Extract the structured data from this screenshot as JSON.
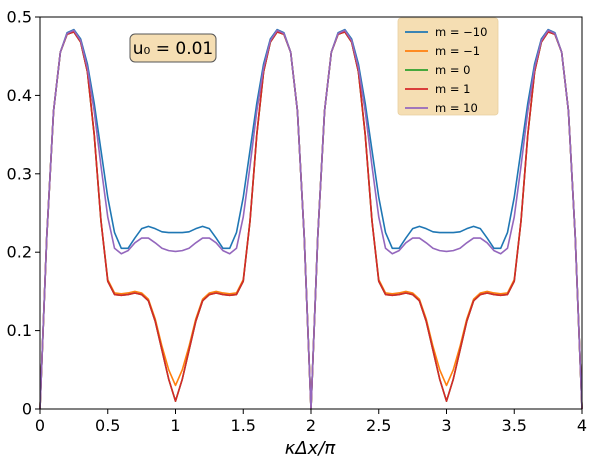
{
  "chart_data": {
    "type": "line",
    "title": "",
    "xlabel": "κΔx/π",
    "ylabel": "",
    "xlim": [
      0,
      4
    ],
    "ylim": [
      0,
      0.5
    ],
    "x_ticks": [
      0,
      0.5,
      1,
      1.5,
      2,
      2.5,
      3,
      3.5,
      4
    ],
    "x_tick_labels": [
      "0",
      "0.5",
      "1",
      "1.5",
      "2",
      "2.5",
      "3",
      "3.5",
      "4"
    ],
    "y_ticks": [
      0,
      0.1,
      0.2,
      0.3,
      0.4,
      0.5
    ],
    "y_tick_labels": [
      "0",
      "0.1",
      "0.2",
      "0.3",
      "0.4",
      "0.5"
    ],
    "grid": false,
    "legend_position": "top-right",
    "annotation": "u₀ = 0.01",
    "x": [
      0,
      0.05,
      0.1,
      0.15,
      0.2,
      0.25,
      0.3,
      0.35,
      0.4,
      0.45,
      0.5,
      0.55,
      0.6,
      0.65,
      0.7,
      0.75,
      0.8,
      0.85,
      0.9,
      0.95,
      1.0,
      1.05,
      1.1,
      1.15,
      1.2,
      1.25,
      1.3,
      1.35,
      1.4,
      1.45,
      1.5,
      1.55,
      1.6,
      1.65,
      1.7,
      1.75,
      1.8,
      1.85,
      1.9,
      1.95,
      2.0,
      2.05,
      2.1,
      2.15,
      2.2,
      2.25,
      2.3,
      2.35,
      2.4,
      2.45,
      2.5,
      2.55,
      2.6,
      2.65,
      2.7,
      2.75,
      2.8,
      2.85,
      2.9,
      2.95,
      3.0,
      3.05,
      3.1,
      3.15,
      3.2,
      3.25,
      3.3,
      3.35,
      3.4,
      3.45,
      3.5,
      3.55,
      3.6,
      3.65,
      3.7,
      3.75,
      3.8,
      3.85,
      3.9,
      3.95,
      4.0
    ],
    "series": [
      {
        "name": "m = −10",
        "color": "#1f77b4",
        "values": [
          0,
          0.22,
          0.38,
          0.455,
          0.48,
          0.484,
          0.472,
          0.44,
          0.39,
          0.33,
          0.27,
          0.225,
          0.205,
          0.205,
          0.218,
          0.23,
          0.233,
          0.23,
          0.226,
          0.225,
          0.225,
          0.225,
          0.226,
          0.23,
          0.233,
          0.23,
          0.218,
          0.205,
          0.205,
          0.225,
          0.27,
          0.33,
          0.39,
          0.44,
          0.472,
          0.484,
          0.48,
          0.455,
          0.38,
          0.22,
          0,
          0.22,
          0.38,
          0.455,
          0.48,
          0.484,
          0.472,
          0.44,
          0.39,
          0.33,
          0.27,
          0.225,
          0.205,
          0.205,
          0.218,
          0.23,
          0.233,
          0.23,
          0.226,
          0.225,
          0.225,
          0.225,
          0.226,
          0.23,
          0.233,
          0.23,
          0.218,
          0.205,
          0.205,
          0.225,
          0.27,
          0.33,
          0.39,
          0.44,
          0.472,
          0.484,
          0.48,
          0.455,
          0.38,
          0.22,
          0
        ]
      },
      {
        "name": "m = −1",
        "color": "#ff7f0e",
        "values": [
          0,
          0.22,
          0.38,
          0.455,
          0.478,
          0.481,
          0.468,
          0.43,
          0.35,
          0.24,
          0.165,
          0.148,
          0.147,
          0.148,
          0.15,
          0.148,
          0.14,
          0.115,
          0.08,
          0.05,
          0.03,
          0.05,
          0.08,
          0.115,
          0.14,
          0.148,
          0.15,
          0.148,
          0.147,
          0.148,
          0.165,
          0.24,
          0.35,
          0.43,
          0.468,
          0.481,
          0.478,
          0.455,
          0.38,
          0.22,
          0,
          0.22,
          0.38,
          0.455,
          0.478,
          0.481,
          0.468,
          0.43,
          0.35,
          0.24,
          0.165,
          0.148,
          0.147,
          0.148,
          0.15,
          0.148,
          0.14,
          0.115,
          0.08,
          0.05,
          0.03,
          0.05,
          0.08,
          0.115,
          0.14,
          0.148,
          0.15,
          0.148,
          0.147,
          0.148,
          0.165,
          0.24,
          0.35,
          0.43,
          0.468,
          0.481,
          0.478,
          0.455,
          0.38,
          0.22,
          0
        ]
      },
      {
        "name": "m = 0",
        "color": "#2ca02c",
        "values": [
          0,
          0.22,
          0.38,
          0.455,
          0.478,
          0.481,
          0.468,
          0.43,
          0.35,
          0.24,
          0.163,
          0.146,
          0.145,
          0.146,
          0.148,
          0.146,
          0.138,
          0.112,
          0.075,
          0.038,
          0.01,
          0.038,
          0.075,
          0.112,
          0.138,
          0.146,
          0.148,
          0.146,
          0.145,
          0.146,
          0.163,
          0.24,
          0.35,
          0.43,
          0.468,
          0.481,
          0.478,
          0.455,
          0.38,
          0.22,
          0,
          0.22,
          0.38,
          0.455,
          0.478,
          0.481,
          0.468,
          0.43,
          0.35,
          0.24,
          0.163,
          0.146,
          0.145,
          0.146,
          0.148,
          0.146,
          0.138,
          0.112,
          0.075,
          0.038,
          0.01,
          0.038,
          0.075,
          0.112,
          0.138,
          0.146,
          0.148,
          0.146,
          0.145,
          0.146,
          0.163,
          0.24,
          0.35,
          0.43,
          0.468,
          0.481,
          0.478,
          0.455,
          0.38,
          0.22,
          0
        ]
      },
      {
        "name": "m = 1",
        "color": "#d62728",
        "values": [
          0,
          0.22,
          0.38,
          0.455,
          0.478,
          0.481,
          0.468,
          0.43,
          0.35,
          0.24,
          0.163,
          0.146,
          0.145,
          0.146,
          0.148,
          0.146,
          0.138,
          0.112,
          0.075,
          0.038,
          0.01,
          0.038,
          0.075,
          0.112,
          0.138,
          0.146,
          0.148,
          0.146,
          0.145,
          0.146,
          0.163,
          0.24,
          0.35,
          0.43,
          0.468,
          0.481,
          0.478,
          0.455,
          0.38,
          0.22,
          0,
          0.22,
          0.38,
          0.455,
          0.478,
          0.481,
          0.468,
          0.43,
          0.35,
          0.24,
          0.163,
          0.146,
          0.145,
          0.146,
          0.148,
          0.146,
          0.138,
          0.112,
          0.075,
          0.038,
          0.01,
          0.038,
          0.075,
          0.112,
          0.138,
          0.146,
          0.148,
          0.146,
          0.145,
          0.146,
          0.163,
          0.24,
          0.35,
          0.43,
          0.468,
          0.481,
          0.478,
          0.455,
          0.38,
          0.22,
          0
        ]
      },
      {
        "name": "m = 10",
        "color": "#9467bd",
        "values": [
          0,
          0.22,
          0.38,
          0.455,
          0.479,
          0.483,
          0.47,
          0.435,
          0.38,
          0.31,
          0.245,
          0.205,
          0.198,
          0.202,
          0.212,
          0.218,
          0.218,
          0.212,
          0.205,
          0.202,
          0.201,
          0.202,
          0.205,
          0.212,
          0.218,
          0.218,
          0.212,
          0.202,
          0.198,
          0.205,
          0.245,
          0.31,
          0.38,
          0.435,
          0.47,
          0.483,
          0.479,
          0.455,
          0.38,
          0.22,
          0,
          0.22,
          0.38,
          0.455,
          0.479,
          0.483,
          0.47,
          0.435,
          0.38,
          0.31,
          0.245,
          0.205,
          0.198,
          0.202,
          0.212,
          0.218,
          0.218,
          0.212,
          0.205,
          0.202,
          0.201,
          0.202,
          0.205,
          0.212,
          0.218,
          0.218,
          0.212,
          0.202,
          0.198,
          0.205,
          0.245,
          0.31,
          0.38,
          0.435,
          0.47,
          0.483,
          0.479,
          0.455,
          0.38,
          0.22,
          0
        ]
      }
    ],
    "legend_bg": "#f5deb3",
    "annotation_bg": "#f5deb3"
  }
}
